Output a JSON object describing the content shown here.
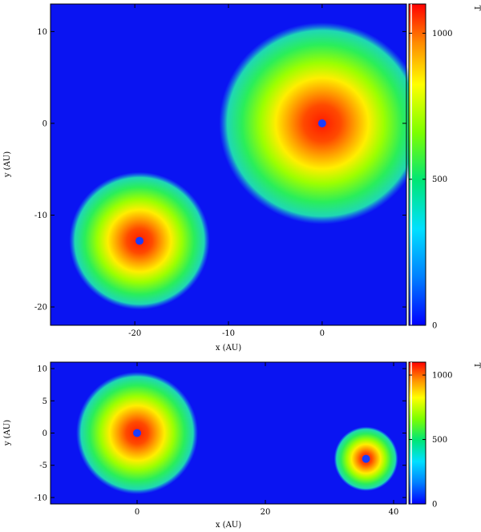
{
  "panels": [
    {
      "name": "top",
      "xlabel": "x (AU)",
      "ylabel": "y (AU)",
      "colorbar_label": "T",
      "xlim": [
        -29,
        9
      ],
      "ylim": [
        -22,
        13
      ],
      "xticks": [
        {
          "v": -20,
          "t": "-20"
        },
        {
          "v": -10,
          "t": "-10"
        },
        {
          "v": 0,
          "t": "0"
        }
      ],
      "yticks": [
        {
          "v": 10,
          "t": "10"
        },
        {
          "v": 0,
          "t": "0"
        },
        {
          "v": -10,
          "t": "-10"
        },
        {
          "v": -20,
          "t": "-20"
        }
      ],
      "cbar_range": [
        0,
        1100
      ],
      "cbar_ticks": [
        {
          "v": 1000,
          "t": "1000"
        },
        {
          "v": 500,
          "t": "500"
        },
        {
          "v": 0,
          "t": "0"
        }
      ],
      "disks": [
        {
          "x": 0,
          "y": 0,
          "r": 11,
          "core": 4
        },
        {
          "x": -19.5,
          "y": -12.8,
          "r": 7.5,
          "core": 3
        }
      ]
    },
    {
      "name": "bottom",
      "xlabel": "x (AU)",
      "ylabel": "y (AU)",
      "colorbar_label": "T",
      "xlim": [
        -13.5,
        42
      ],
      "ylim": [
        -11,
        11
      ],
      "xticks": [
        {
          "v": 0,
          "t": "0"
        },
        {
          "v": 20,
          "t": "20"
        },
        {
          "v": 40,
          "t": "40"
        }
      ],
      "yticks": [
        {
          "v": 10,
          "t": "10"
        },
        {
          "v": 5,
          "t": "5"
        },
        {
          "v": 0,
          "t": "0"
        },
        {
          "v": -5,
          "t": "-5"
        },
        {
          "v": -10,
          "t": "-10"
        }
      ],
      "cbar_range": [
        0,
        1100
      ],
      "cbar_ticks": [
        {
          "v": 1000,
          "t": "1000"
        },
        {
          "v": 500,
          "t": "500"
        },
        {
          "v": 0,
          "t": "0"
        }
      ],
      "disks": [
        {
          "x": 0,
          "y": 0,
          "r": 9.5,
          "core": 3
        },
        {
          "x": 35.7,
          "y": -4,
          "r": 5,
          "core": 1.8
        }
      ]
    }
  ],
  "colors": {
    "background": "#0a14f2",
    "colormap": [
      "#0000ff",
      "#00c8ff",
      "#00e676",
      "#7cff00",
      "#ffff00",
      "#ff8a00",
      "#ff0000"
    ]
  }
}
